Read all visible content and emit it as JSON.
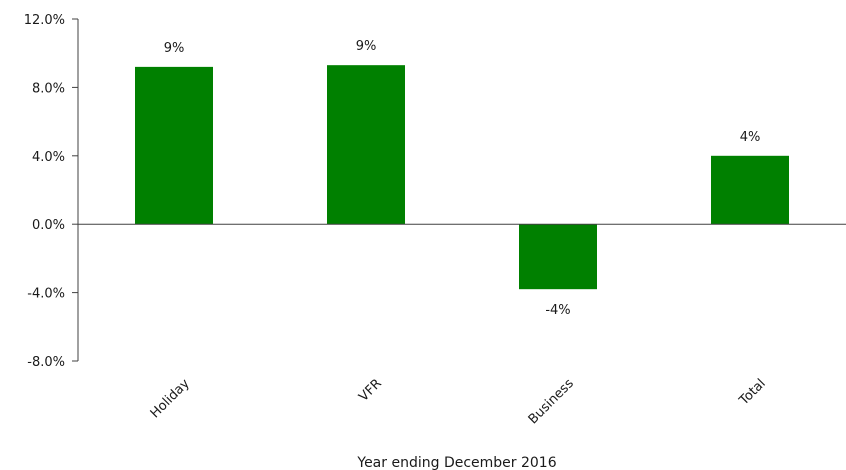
{
  "chart_data": {
    "type": "bar",
    "title": "",
    "xlabel": "Year ending December 2016",
    "ylabel": "",
    "categories": [
      "Holiday",
      "VFR",
      "Business",
      "Total"
    ],
    "values": [
      9.2,
      9.3,
      -3.8,
      4.0
    ],
    "data_labels": [
      "9%",
      "9%",
      "-4%",
      "4%"
    ],
    "ylim": [
      -8,
      12
    ],
    "yticks": [
      12,
      8,
      4,
      0,
      -4,
      -8
    ],
    "ytick_labels": [
      "12.0%",
      "8.0%",
      "4.0%",
      "0.0%",
      "-4.0%",
      "-8.0%"
    ],
    "bar_color": "#008000",
    "grid": false,
    "legend": "none"
  }
}
